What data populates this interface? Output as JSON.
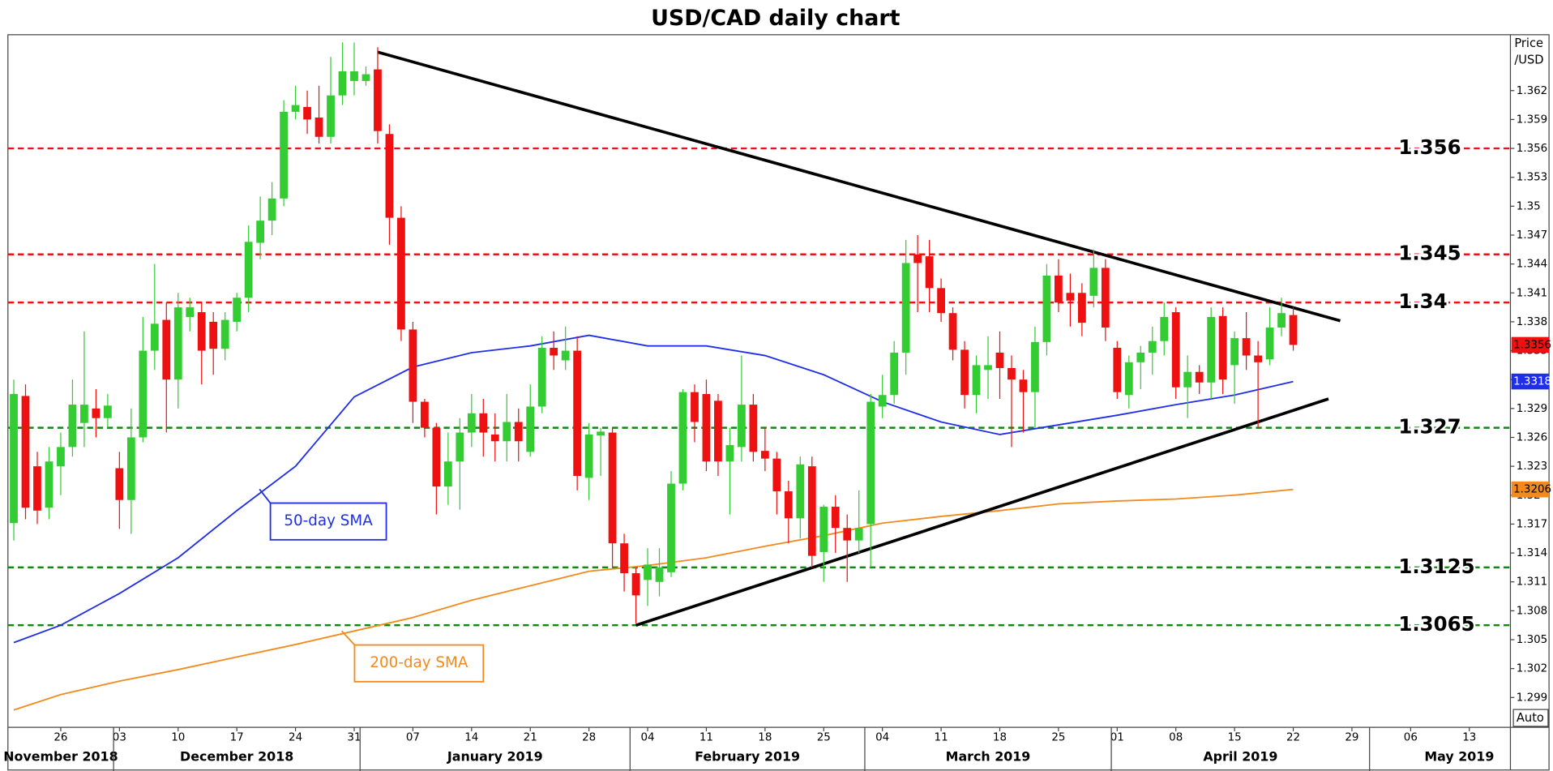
{
  "chart_data": {
    "type": "candlestick",
    "title": "USD/CAD daily chart",
    "y_label": [
      "Price",
      "/USD"
    ],
    "corner_label": "Auto",
    "up_color": "#33cc33",
    "down_color": "#ee1111",
    "x": [
      "2018-11-20",
      "2018-11-21",
      "2018-11-22",
      "2018-11-23",
      "2018-11-26",
      "2018-11-27",
      "2018-11-28",
      "2018-11-29",
      "2018-11-30",
      "2018-12-03",
      "2018-12-04",
      "2018-12-05",
      "2018-12-06",
      "2018-12-07",
      "2018-12-10",
      "2018-12-11",
      "2018-12-12",
      "2018-12-13",
      "2018-12-14",
      "2018-12-17",
      "2018-12-18",
      "2018-12-19",
      "2018-12-20",
      "2018-12-21",
      "2018-12-24",
      "2018-12-25",
      "2018-12-26",
      "2018-12-27",
      "2018-12-28",
      "2018-12-31",
      "2019-01-01",
      "2019-01-02",
      "2019-01-03",
      "2019-01-04",
      "2019-01-07",
      "2019-01-08",
      "2019-01-09",
      "2019-01-10",
      "2019-01-11",
      "2019-01-14",
      "2019-01-15",
      "2019-01-16",
      "2019-01-17",
      "2019-01-18",
      "2019-01-21",
      "2019-01-22",
      "2019-01-23",
      "2019-01-24",
      "2019-01-25",
      "2019-01-28",
      "2019-01-29",
      "2019-01-30",
      "2019-01-31",
      "2019-02-01",
      "2019-02-04",
      "2019-02-05",
      "2019-02-06",
      "2019-02-07",
      "2019-02-08",
      "2019-02-11",
      "2019-02-12",
      "2019-02-13",
      "2019-02-14",
      "2019-02-15",
      "2019-02-18",
      "2019-02-19",
      "2019-02-20",
      "2019-02-21",
      "2019-02-22",
      "2019-02-25",
      "2019-02-26",
      "2019-02-27",
      "2019-02-28",
      "2019-03-01",
      "2019-03-04",
      "2019-03-05",
      "2019-03-06",
      "2019-03-07",
      "2019-03-08",
      "2019-03-11",
      "2019-03-12",
      "2019-03-13",
      "2019-03-14",
      "2019-03-15",
      "2019-03-18",
      "2019-03-19",
      "2019-03-20",
      "2019-03-21",
      "2019-03-22",
      "2019-03-25",
      "2019-03-26",
      "2019-03-27",
      "2019-03-28",
      "2019-03-29",
      "2019-04-01",
      "2019-04-02",
      "2019-04-03",
      "2019-04-04",
      "2019-04-05",
      "2019-04-08",
      "2019-04-09",
      "2019-04-10",
      "2019-04-11",
      "2019-04-12",
      "2019-04-15",
      "2019-04-16",
      "2019-04-17",
      "2019-04-18",
      "2019-04-19",
      "2019-04-22"
    ],
    "open": [
      1.3171,
      1.3303,
      1.323,
      1.3187,
      1.323,
      1.325,
      1.3275,
      1.329,
      1.328,
      1.3228,
      1.3195,
      1.326,
      1.335,
      1.3382,
      1.332,
      1.3385,
      1.339,
      1.338,
      1.3352,
      1.338,
      1.3405,
      1.3462,
      1.3485,
      1.3508,
      1.3598,
      1.3603,
      1.3592,
      1.3572,
      1.3615,
      1.363,
      1.363,
      1.3642,
      1.3575,
      1.3488,
      1.3372,
      1.3297,
      1.327,
      1.3209,
      1.3235,
      1.3265,
      1.3285,
      1.3263,
      1.3256,
      1.3276,
      1.3245,
      1.3292,
      1.3353,
      1.334,
      1.335,
      1.3218,
      1.3262,
      1.3265,
      1.315,
      1.3119,
      1.3112,
      1.311,
      1.312,
      1.3212,
      1.3307,
      1.3305,
      1.3298,
      1.3235,
      1.325,
      1.3294,
      1.3246,
      1.3238,
      1.3204,
      1.3176,
      1.323,
      1.3141,
      1.3188,
      1.3166,
      1.3153,
      1.317,
      1.3292,
      1.3304,
      1.3348,
      1.345,
      1.3448,
      1.3415,
      1.3389,
      1.3351,
      1.3304,
      1.333,
      1.3348,
      1.3332,
      1.332,
      1.3307,
      1.3359,
      1.3428,
      1.341,
      1.341,
      1.3407,
      1.3436,
      1.3353,
      1.3304,
      1.3338,
      1.3348,
      1.336,
      1.339,
      1.3312,
      1.3328,
      1.3317,
      1.3386,
      1.3335,
      1.3363,
      1.3345,
      1.3341,
      1.3374,
      1.3387
    ],
    "high": [
      1.332,
      1.3315,
      1.3245,
      1.325,
      1.3265,
      1.332,
      1.337,
      1.331,
      1.3305,
      1.3245,
      1.329,
      1.3385,
      1.344,
      1.34,
      1.341,
      1.3405,
      1.34,
      1.339,
      1.339,
      1.341,
      1.348,
      1.351,
      1.3525,
      1.361,
      1.3625,
      1.362,
      1.3625,
      1.3655,
      1.367,
      1.367,
      1.3645,
      1.3665,
      1.3585,
      1.35,
      1.338,
      1.33,
      1.3275,
      1.3265,
      1.328,
      1.3305,
      1.33,
      1.3285,
      1.3305,
      1.329,
      1.3315,
      1.3365,
      1.337,
      1.3375,
      1.3365,
      1.3275,
      1.327,
      1.327,
      1.316,
      1.3125,
      1.3145,
      1.3145,
      1.3225,
      1.331,
      1.3315,
      1.332,
      1.3305,
      1.327,
      1.3345,
      1.3305,
      1.327,
      1.3245,
      1.3215,
      1.324,
      1.324,
      1.319,
      1.32,
      1.318,
      1.3205,
      1.3305,
      1.3325,
      1.336,
      1.3465,
      1.347,
      1.3465,
      1.3425,
      1.3395,
      1.336,
      1.3345,
      1.3365,
      1.337,
      1.3345,
      1.333,
      1.3375,
      1.344,
      1.3445,
      1.343,
      1.342,
      1.3455,
      1.3445,
      1.336,
      1.3345,
      1.3355,
      1.3375,
      1.34,
      1.3395,
      1.3345,
      1.3335,
      1.3395,
      1.3395,
      1.337,
      1.339,
      1.336,
      1.3395,
      1.3405,
      1.3395
    ],
    "low": [
      1.3153,
      1.3175,
      1.317,
      1.3175,
      1.32,
      1.324,
      1.325,
      1.326,
      1.327,
      1.3165,
      1.316,
      1.3255,
      1.333,
      1.3265,
      1.329,
      1.337,
      1.3315,
      1.3325,
      1.334,
      1.337,
      1.339,
      1.3445,
      1.347,
      1.35,
      1.359,
      1.3575,
      1.3565,
      1.3565,
      1.3605,
      1.3615,
      1.3625,
      1.3565,
      1.346,
      1.336,
      1.3275,
      1.326,
      1.318,
      1.319,
      1.3185,
      1.325,
      1.324,
      1.3235,
      1.3235,
      1.3235,
      1.324,
      1.3285,
      1.333,
      1.333,
      1.3205,
      1.3195,
      1.322,
      1.3125,
      1.31,
      1.3067,
      1.3085,
      1.3095,
      1.3115,
      1.3205,
      1.3255,
      1.3225,
      1.322,
      1.318,
      1.3235,
      1.3235,
      1.3225,
      1.318,
      1.315,
      1.3155,
      1.3125,
      1.311,
      1.314,
      1.311,
      1.314,
      1.3125,
      1.328,
      1.3295,
      1.3325,
      1.339,
      1.339,
      1.338,
      1.334,
      1.329,
      1.3285,
      1.33,
      1.33,
      1.325,
      1.3265,
      1.327,
      1.3345,
      1.339,
      1.3375,
      1.3365,
      1.3395,
      1.336,
      1.33,
      1.329,
      1.331,
      1.3325,
      1.3345,
      1.33,
      1.328,
      1.3305,
      1.33,
      1.3305,
      1.3295,
      1.333,
      1.327,
      1.3335,
      1.3365,
      1.335
    ],
    "close": [
      1.3305,
      1.3187,
      1.3184,
      1.3235,
      1.325,
      1.3294,
      1.3294,
      1.328,
      1.3293,
      1.3195,
      1.326,
      1.335,
      1.3378,
      1.332,
      1.3395,
      1.3395,
      1.335,
      1.3352,
      1.3382,
      1.3405,
      1.3463,
      1.3485,
      1.3508,
      1.3598,
      1.3605,
      1.359,
      1.3572,
      1.3615,
      1.364,
      1.364,
      1.3637,
      1.3578,
      1.3488,
      1.3372,
      1.3297,
      1.327,
      1.3209,
      1.3235,
      1.3265,
      1.3285,
      1.3265,
      1.3256,
      1.3276,
      1.3256,
      1.3292,
      1.3353,
      1.3345,
      1.335,
      1.322,
      1.3263,
      1.3266,
      1.315,
      1.3119,
      1.3096,
      1.3128,
      1.3125,
      1.3212,
      1.3307,
      1.3276,
      1.3235,
      1.3235,
      1.3252,
      1.3294,
      1.3245,
      1.3238,
      1.3204,
      1.3176,
      1.3232,
      1.3137,
      1.3188,
      1.3166,
      1.3153,
      1.3166,
      1.3297,
      1.3304,
      1.3348,
      1.3441,
      1.3441,
      1.3415,
      1.3389,
      1.3351,
      1.3304,
      1.3335,
      1.3335,
      1.3332,
      1.332,
      1.3307,
      1.3359,
      1.3428,
      1.34,
      1.3402,
      1.3379,
      1.3436,
      1.3374,
      1.3307,
      1.3338,
      1.3348,
      1.336,
      1.3385,
      1.3312,
      1.3328,
      1.3317,
      1.3385,
      1.332,
      1.3363,
      1.3345,
      1.3338,
      1.3374,
      1.3389,
      1.3356
    ],
    "lines": [
      {
        "name": "50-day SMA",
        "color": "#1f2ee8",
        "x": [
          "2018-11-20",
          "2018-11-26",
          "2018-12-03",
          "2018-12-10",
          "2018-12-17",
          "2018-12-24",
          "2018-12-31",
          "2019-01-07",
          "2019-01-14",
          "2019-01-21",
          "2019-01-28",
          "2019-02-04",
          "2019-02-11",
          "2019-02-18",
          "2019-02-25",
          "2019-03-04",
          "2019-03-11",
          "2019-03-18",
          "2019-03-25",
          "2019-04-01",
          "2019-04-08",
          "2019-04-15",
          "2019-04-22"
        ],
        "values": [
          1.3047,
          1.3065,
          1.3098,
          1.3135,
          1.3184,
          1.323,
          1.3302,
          1.3333,
          1.3348,
          1.3355,
          1.3366,
          1.3355,
          1.3355,
          1.3345,
          1.3325,
          1.3297,
          1.3276,
          1.3263,
          1.3273,
          1.3283,
          1.3294,
          1.3304,
          1.3318
        ]
      },
      {
        "name": "200-day SMA",
        "color": "#f28a1e",
        "x": [
          "2018-11-20",
          "2018-11-26",
          "2018-12-03",
          "2018-12-10",
          "2018-12-17",
          "2018-12-24",
          "2018-12-31",
          "2019-01-07",
          "2019-01-14",
          "2019-01-21",
          "2019-01-28",
          "2019-02-04",
          "2019-02-11",
          "2019-02-18",
          "2019-02-25",
          "2019-03-04",
          "2019-03-11",
          "2019-03-18",
          "2019-03-25",
          "2019-04-01",
          "2019-04-08",
          "2019-04-15",
          "2019-04-22"
        ],
        "values": [
          1.2977,
          1.2993,
          1.3007,
          1.3019,
          1.3032,
          1.3045,
          1.3059,
          1.3073,
          1.3091,
          1.3106,
          1.3121,
          1.3127,
          1.3135,
          1.3147,
          1.3158,
          1.3171,
          1.3178,
          1.3184,
          1.3191,
          1.3194,
          1.3196,
          1.32,
          1.3206
        ]
      }
    ],
    "trendlines": [
      {
        "x": [
          "2019-01-02",
          "2019-04-26"
        ],
        "values": [
          1.366,
          1.3381
        ]
      },
      {
        "x": [
          "2019-02-01",
          "2019-04-25"
        ],
        "values": [
          1.3065,
          1.33
        ]
      }
    ],
    "levels": [
      {
        "value": 1.356,
        "color": "#ee1111"
      },
      {
        "value": 1.345,
        "color": "#ee1111"
      },
      {
        "value": 1.34,
        "color": "#ee1111"
      },
      {
        "value": 1.327,
        "color": "#118811"
      },
      {
        "value": 1.3125,
        "color": "#118811"
      },
      {
        "value": 1.3065,
        "color": "#118811"
      }
    ],
    "xlim": [
      "2018-11-20",
      "2019-05-16"
    ],
    "xticks": [
      {
        "value": "2018-11-26",
        "label": "26"
      },
      {
        "value": "2018-12-03",
        "label": "03"
      },
      {
        "value": "2018-12-10",
        "label": "10"
      },
      {
        "value": "2018-12-17",
        "label": "17"
      },
      {
        "value": "2018-12-24",
        "label": "24"
      },
      {
        "value": "2018-12-31",
        "label": "31"
      },
      {
        "value": "2019-01-07",
        "label": "07"
      },
      {
        "value": "2019-01-14",
        "label": "14"
      },
      {
        "value": "2019-01-21",
        "label": "21"
      },
      {
        "value": "2019-01-28",
        "label": "28"
      },
      {
        "value": "2019-02-04",
        "label": "04"
      },
      {
        "value": "2019-02-11",
        "label": "11"
      },
      {
        "value": "2019-02-18",
        "label": "18"
      },
      {
        "value": "2019-02-25",
        "label": "25"
      },
      {
        "value": "2019-03-04",
        "label": "04"
      },
      {
        "value": "2019-03-11",
        "label": "11"
      },
      {
        "value": "2019-03-18",
        "label": "18"
      },
      {
        "value": "2019-03-25",
        "label": "25"
      },
      {
        "value": "2019-04-01",
        "label": "01"
      },
      {
        "value": "2019-04-08",
        "label": "08"
      },
      {
        "value": "2019-04-15",
        "label": "15"
      },
      {
        "value": "2019-04-22",
        "label": "22"
      },
      {
        "value": "2019-04-29",
        "label": "29"
      },
      {
        "value": "2019-05-06",
        "label": "06"
      },
      {
        "value": "2019-05-13",
        "label": "13"
      }
    ],
    "months": [
      {
        "value": "2018-11",
        "label": "November 2018"
      },
      {
        "value": "2018-12",
        "label": "December 2018"
      },
      {
        "value": "2019-01",
        "label": "January 2019"
      },
      {
        "value": "2019-02",
        "label": "February 2019"
      },
      {
        "value": "2019-03",
        "label": "March 2019"
      },
      {
        "value": "2019-04",
        "label": "April 2019"
      },
      {
        "value": "2019-05",
        "label": "May 2019"
      }
    ],
    "ylim": [
      1.2959,
      1.3678
    ],
    "yticks": [
      1.299,
      1.302,
      1.305,
      1.308,
      1.311,
      1.314,
      1.317,
      1.32,
      1.323,
      1.326,
      1.329,
      1.332,
      1.335,
      1.338,
      1.341,
      1.344,
      1.347,
      1.35,
      1.353,
      1.356,
      1.359,
      1.362
    ]
  }
}
